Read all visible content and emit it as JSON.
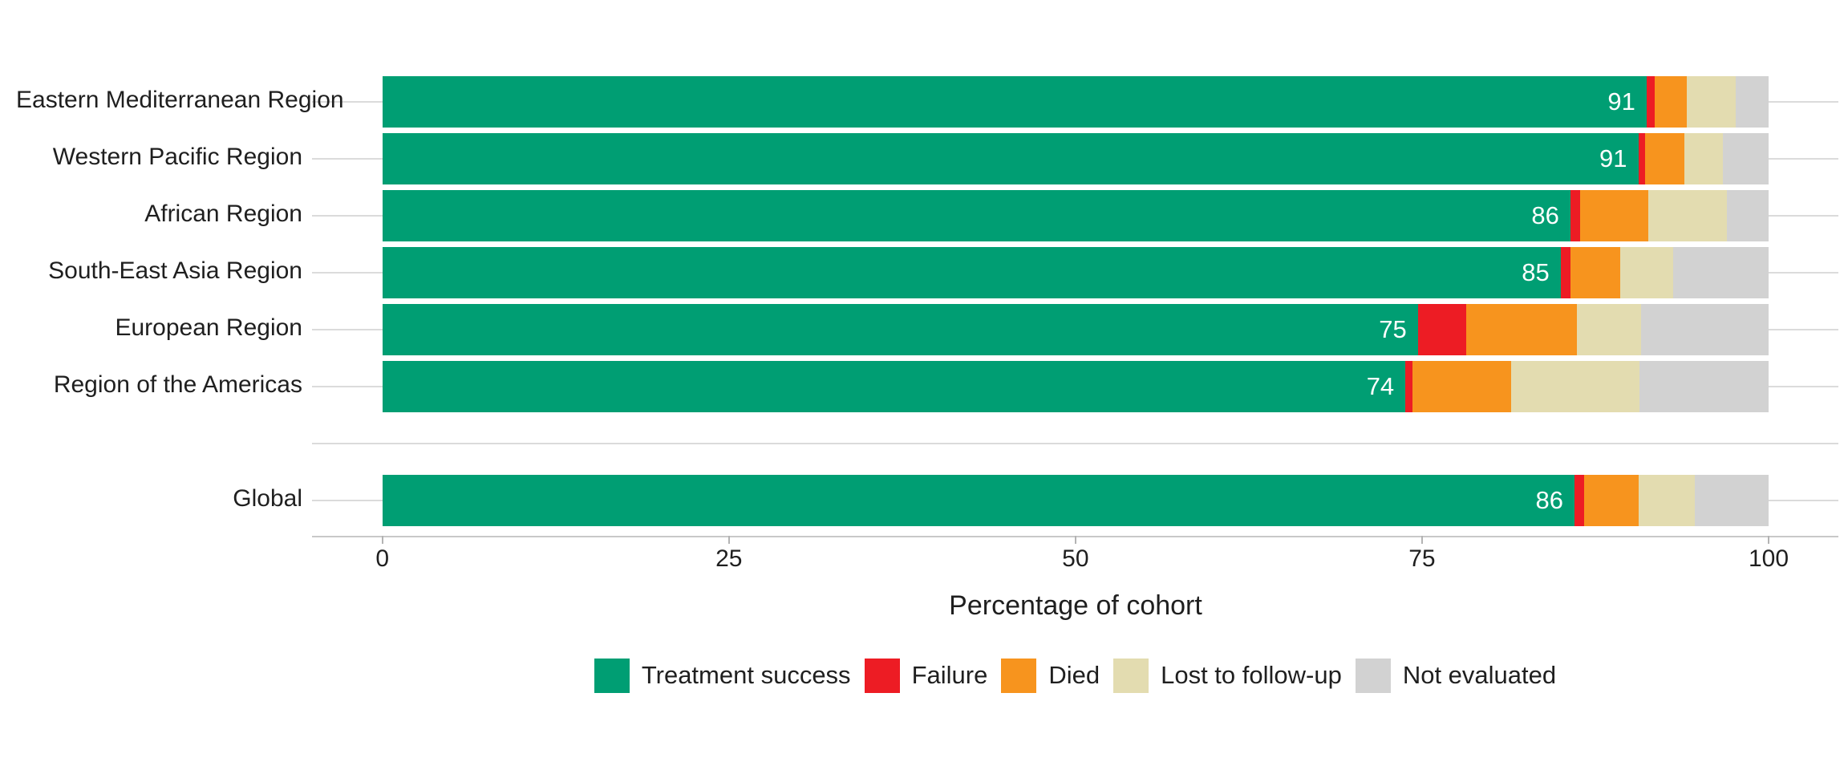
{
  "chart_data": {
    "type": "bar",
    "orientation": "horizontal",
    "stacked": true,
    "title": "",
    "xlabel": "Percentage of cohort",
    "ylabel": "",
    "xlim": [
      0,
      100
    ],
    "x_ticks": [
      "0",
      "25",
      "50",
      "75",
      "100"
    ],
    "x_tick_values": [
      0,
      25,
      50,
      75,
      100
    ],
    "grid": "category-lines",
    "legend_position": "bottom",
    "series_names": [
      "Treatment success",
      "Failure",
      "Died",
      "Lost to follow-up",
      "Not evaluated"
    ],
    "categories": [
      "Eastern Mediterranean Region",
      "Western Pacific Region",
      "African Region",
      "South-East Asia Region",
      "European Region",
      "Region of the Americas",
      "",
      "Global"
    ],
    "rows": [
      {
        "label": "Eastern Mediterranean Region",
        "spacer": false,
        "value_label": "91",
        "values": [
          91.2,
          0.6,
          2.3,
          3.5,
          2.4
        ]
      },
      {
        "label": "Western Pacific Region",
        "spacer": false,
        "value_label": "91",
        "values": [
          90.6,
          0.5,
          2.8,
          2.8,
          3.3
        ]
      },
      {
        "label": "African Region",
        "spacer": false,
        "value_label": "86",
        "values": [
          85.7,
          0.7,
          4.9,
          5.7,
          3.0
        ]
      },
      {
        "label": "South-East Asia Region",
        "spacer": false,
        "value_label": "85",
        "values": [
          85.0,
          0.7,
          3.6,
          3.8,
          6.9
        ]
      },
      {
        "label": "European Region",
        "spacer": false,
        "value_label": "75",
        "values": [
          74.7,
          3.5,
          8.0,
          4.6,
          9.2
        ]
      },
      {
        "label": "Region of the Americas",
        "spacer": false,
        "value_label": "74",
        "values": [
          73.8,
          0.5,
          7.1,
          9.3,
          9.3
        ]
      },
      {
        "label": "",
        "spacer": true,
        "value_label": "",
        "values": null
      },
      {
        "label": "Global",
        "spacer": false,
        "value_label": "86",
        "values": [
          86.0,
          0.7,
          3.9,
          4.1,
          5.3
        ]
      }
    ]
  },
  "legend": {
    "items": [
      {
        "label": "Treatment success",
        "color": "#009E73"
      },
      {
        "label": "Failure",
        "color": "#ED1C24"
      },
      {
        "label": "Died",
        "color": "#F7941E"
      },
      {
        "label": "Lost to follow-up",
        "color": "#E3DCB0"
      },
      {
        "label": "Not evaluated",
        "color": "#D2D2D2"
      }
    ]
  },
  "colors": {
    "series": [
      "#009E73",
      "#ED1C24",
      "#F7941E",
      "#E3DCB0",
      "#D2D2D2"
    ],
    "gridline": "#DBDBDB",
    "axis_line": "#C8C8C8",
    "tick_mark": "#B3B3B3",
    "text": "#1f1f1f",
    "value_label_text": "#ffffff",
    "background": "#ffffff"
  }
}
